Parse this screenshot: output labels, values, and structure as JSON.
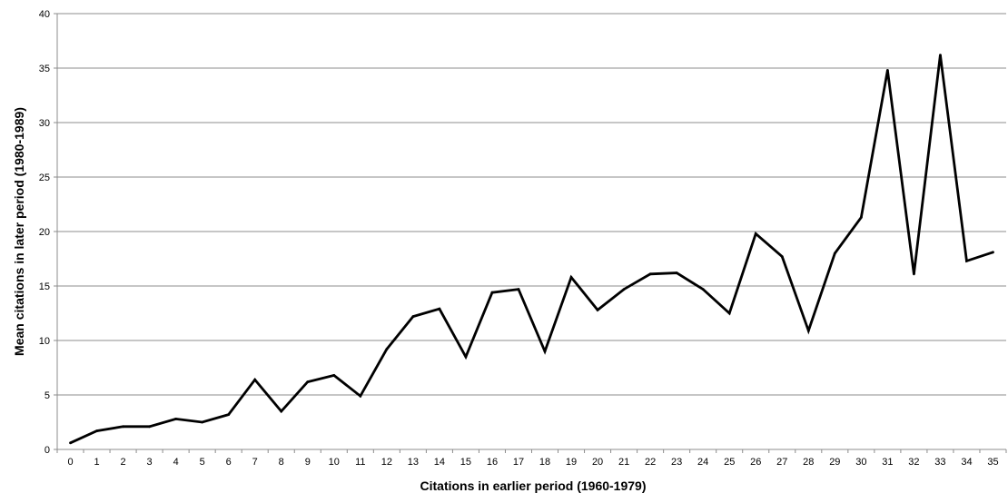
{
  "chart_data": {
    "type": "line",
    "title": "",
    "xlabel": "Citations in earlier period (1960-1979)",
    "ylabel": "Mean citations in later period (1980-1989)",
    "ylim": [
      0,
      40
    ],
    "yticks": [
      0,
      5,
      10,
      15,
      20,
      25,
      30,
      35,
      40
    ],
    "grid": true,
    "legend": "none",
    "categories": [
      "0",
      "1",
      "2",
      "3",
      "4",
      "5",
      "6",
      "7",
      "8",
      "9",
      "10",
      "11",
      "12",
      "13",
      "14",
      "15",
      "16",
      "17",
      "18",
      "19",
      "20",
      "21",
      "22",
      "23",
      "24",
      "25",
      "26",
      "27",
      "28",
      "29",
      "30",
      "31",
      "32",
      "33",
      "34",
      "35"
    ],
    "series": [
      {
        "color": "#000000",
        "values": [
          0.6,
          1.7,
          2.1,
          2.1,
          2.8,
          2.5,
          3.2,
          6.4,
          3.5,
          6.2,
          6.8,
          4.9,
          9.2,
          12.2,
          12.9,
          8.5,
          14.4,
          14.7,
          9.0,
          15.8,
          12.8,
          14.7,
          16.1,
          16.2,
          14.7,
          12.5,
          19.8,
          17.7,
          10.9,
          18.0,
          21.3,
          34.8,
          16.1,
          36.2,
          17.3,
          18.1
        ]
      }
    ]
  }
}
